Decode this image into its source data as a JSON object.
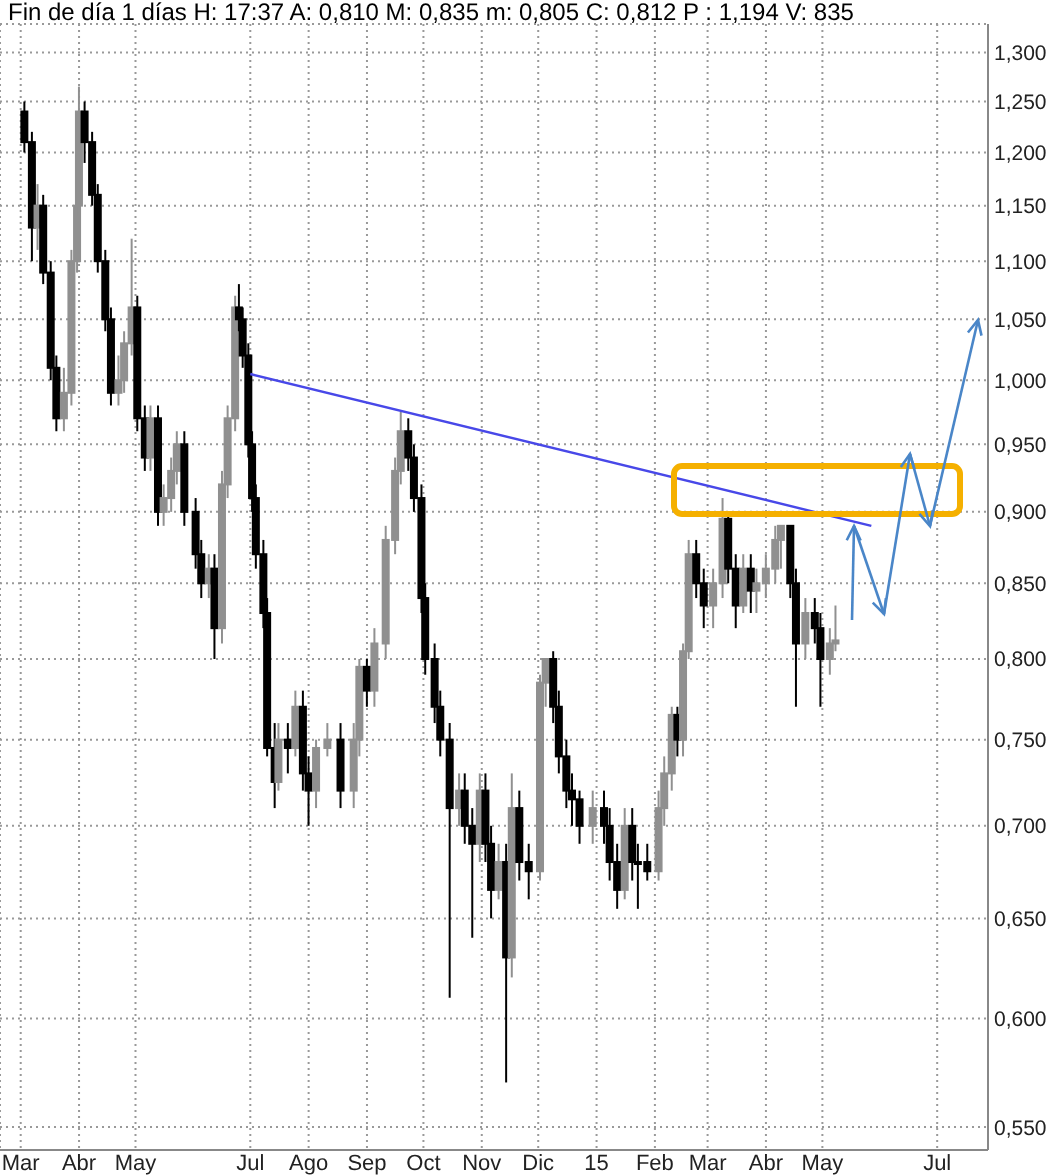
{
  "chart_data": {
    "type": "candlestick",
    "title": "Fin de día 1 días H: 17:37 A: 0,810 M: 0,835 m: 0,805 C: 0,812 P : 1,194 V: 835",
    "grid": true,
    "log": "y",
    "colors": [
      "#000000",
      "#000000",
      "#909090",
      "#000000",
      "#000000",
      "#000000",
      "#909090",
      "#909090",
      "#909090",
      "#909090",
      "#000000",
      "#000000",
      "#000000",
      "#000000",
      "#000000",
      "#909090",
      "#909090",
      "#909090",
      "#000000",
      "#000000",
      "#909090",
      "#000000",
      "#909090",
      "#909090",
      "#909090",
      "#000000",
      "#000000",
      "#000000",
      "#909090",
      "#000000",
      "#909090",
      "#909090",
      "#909090",
      "#000000",
      "#000000",
      "#000000",
      "#000000",
      "#000000",
      "#000000",
      "#000000",
      "#000000",
      "#909090",
      "#000000",
      "#909090",
      "#000000",
      "#000000",
      "#909090",
      "#909090",
      "#000000",
      "#909090",
      "#909090",
      "#000000",
      "#909090",
      "#909090",
      "#909090",
      "#909090",
      "#000000",
      "#000000",
      "#000000",
      "#000000",
      "#000000",
      "#000000",
      "#000000",
      "#909090",
      "#000000",
      "#000000",
      "#909090",
      "#000000",
      "#000000",
      "#909090",
      "#000000",
      "#909090",
      "#000000",
      "#000000",
      "#909090",
      "#909090",
      "#000000",
      "#000000",
      "#000000",
      "#000000",
      "#000000",
      "#909090",
      "#000000",
      "#000000",
      "#000000",
      "#909090",
      "#000000",
      "#000000",
      "#000000",
      "#909090",
      "#909090",
      "#909090",
      "#000000",
      "#909090",
      "#909090",
      "#000000",
      "#000000",
      "#909090",
      "#909090",
      "#000000",
      "#000000",
      "#909090",
      "#000000",
      "#909090",
      "#909090",
      "#909090",
      "#909090",
      "#000000",
      "#000000",
      "#909090",
      "#000000",
      "#000000",
      "#909090",
      "#909090"
    ],
    "xlim": [
      "2014-02-18",
      "2015-07-28"
    ],
    "xticks": [
      {
        "value": "2014-03-01",
        "label": "Mar"
      },
      {
        "value": "2014-04-01",
        "label": "Abr"
      },
      {
        "value": "2014-05-01",
        "label": "May"
      },
      {
        "value": "2014-07-01",
        "label": "Jul"
      },
      {
        "value": "2014-08-01",
        "label": "Ago"
      },
      {
        "value": "2014-09-01",
        "label": "Sep"
      },
      {
        "value": "2014-10-01",
        "label": "Oct"
      },
      {
        "value": "2014-11-01",
        "label": "Nov"
      },
      {
        "value": "2014-12-01",
        "label": "Dic"
      },
      {
        "value": "2015-01-01",
        "label": "15"
      },
      {
        "value": "2015-02-01",
        "label": "Feb"
      },
      {
        "value": "2015-03-01",
        "label": "Mar"
      },
      {
        "value": "2015-04-01",
        "label": "Abr"
      },
      {
        "value": "2015-05-01",
        "label": "May"
      },
      {
        "value": "2015-07-01",
        "label": "Jul"
      }
    ],
    "ylim": [
      0.54,
      1.33
    ],
    "yticks": [
      {
        "value": 0.55,
        "label": "0,550"
      },
      {
        "value": 0.6,
        "label": "0,600"
      },
      {
        "value": 0.65,
        "label": "0,650"
      },
      {
        "value": 0.7,
        "label": "0,700"
      },
      {
        "value": 0.75,
        "label": "0,750"
      },
      {
        "value": 0.8,
        "label": "0,800"
      },
      {
        "value": 0.85,
        "label": "0,850"
      },
      {
        "value": 0.9,
        "label": "0,900"
      },
      {
        "value": 0.95,
        "label": "0,950"
      },
      {
        "value": 1.0,
        "label": "1,000"
      },
      {
        "value": 1.05,
        "label": "1,050"
      },
      {
        "value": 1.1,
        "label": "1,100"
      },
      {
        "value": 1.15,
        "label": "1,150"
      },
      {
        "value": 1.2,
        "label": "1,200"
      },
      {
        "value": 1.25,
        "label": "1,250"
      },
      {
        "value": 1.3,
        "label": "1,300"
      }
    ],
    "x": [
      "2014-03-03",
      "2014-03-07",
      "2014-03-10",
      "2014-03-13",
      "2014-03-17",
      "2014-03-20",
      "2014-03-24",
      "2014-03-28",
      "2014-03-31",
      "2014-04-01",
      "2014-04-04",
      "2014-04-08",
      "2014-04-11",
      "2014-04-15",
      "2014-04-18",
      "2014-04-22",
      "2014-04-25",
      "2014-04-29",
      "2014-05-02",
      "2014-05-06",
      "2014-05-09",
      "2014-05-13",
      "2014-05-16",
      "2014-05-20",
      "2014-05-23",
      "2014-05-27",
      "2014-06-02",
      "2014-06-05",
      "2014-06-09",
      "2014-06-12",
      "2014-06-16",
      "2014-06-19",
      "2014-06-23",
      "2014-06-25",
      "2014-06-27",
      "2014-06-30",
      "2014-07-02",
      "2014-07-04",
      "2014-07-08",
      "2014-07-10",
      "2014-07-14",
      "2014-07-16",
      "2014-07-21",
      "2014-07-25",
      "2014-07-29",
      "2014-08-01",
      "2014-08-05",
      "2014-08-11",
      "2014-08-18",
      "2014-08-25",
      "2014-08-28",
      "2014-09-01",
      "2014-09-05",
      "2014-09-11",
      "2014-09-16",
      "2014-09-19",
      "2014-09-23",
      "2014-09-26",
      "2014-09-30",
      "2014-10-02",
      "2014-10-07",
      "2014-10-10",
      "2014-10-15",
      "2014-10-20",
      "2014-10-23",
      "2014-10-27",
      "2014-10-31",
      "2014-11-03",
      "2014-11-06",
      "2014-11-10",
      "2014-11-14",
      "2014-11-17",
      "2014-11-21",
      "2014-11-26",
      "2014-12-02",
      "2014-12-05",
      "2014-12-09",
      "2014-12-12",
      "2014-12-16",
      "2014-12-19",
      "2014-12-23",
      "2014-12-30",
      "2015-01-05",
      "2015-01-08",
      "2015-01-12",
      "2015-01-16",
      "2015-01-20",
      "2015-01-23",
      "2015-01-28",
      "2015-02-03",
      "2015-02-06",
      "2015-02-10",
      "2015-02-13",
      "2015-02-16",
      "2015-02-19",
      "2015-02-23",
      "2015-02-27",
      "2015-03-04",
      "2015-03-09",
      "2015-03-12",
      "2015-03-16",
      "2015-03-20",
      "2015-03-24",
      "2015-03-27",
      "2015-04-01",
      "2015-04-06",
      "2015-04-09",
      "2015-04-14",
      "2015-04-17",
      "2015-04-22",
      "2015-04-27",
      "2015-04-30",
      "2015-05-05",
      "2015-05-08"
    ],
    "ohlc": [
      [
        1.24,
        1.25,
        1.2,
        1.21
      ],
      [
        1.21,
        1.22,
        1.1,
        1.13
      ],
      [
        1.13,
        1.17,
        1.11,
        1.15
      ],
      [
        1.15,
        1.16,
        1.08,
        1.09
      ],
      [
        1.09,
        1.1,
        1.0,
        1.01
      ],
      [
        1.01,
        1.02,
        0.96,
        0.97
      ],
      [
        0.97,
        1.01,
        0.96,
        0.99
      ],
      [
        0.99,
        1.11,
        0.98,
        1.1
      ],
      [
        1.1,
        1.16,
        1.09,
        1.15
      ],
      [
        1.15,
        1.265,
        1.14,
        1.24
      ],
      [
        1.24,
        1.25,
        1.19,
        1.21
      ],
      [
        1.21,
        1.22,
        1.15,
        1.16
      ],
      [
        1.16,
        1.17,
        1.09,
        1.1
      ],
      [
        1.1,
        1.11,
        1.04,
        1.05
      ],
      [
        1.05,
        1.06,
        0.98,
        0.99
      ],
      [
        0.99,
        1.02,
        0.98,
        1.0
      ],
      [
        1.0,
        1.04,
        0.99,
        1.03
      ],
      [
        1.03,
        1.12,
        1.02,
        1.06
      ],
      [
        1.06,
        1.07,
        0.96,
        0.97
      ],
      [
        0.97,
        0.98,
        0.93,
        0.94
      ],
      [
        0.94,
        0.98,
        0.93,
        0.97
      ],
      [
        0.97,
        0.98,
        0.89,
        0.9
      ],
      [
        0.9,
        0.92,
        0.89,
        0.91
      ],
      [
        0.91,
        0.94,
        0.9,
        0.93
      ],
      [
        0.93,
        0.96,
        0.92,
        0.95
      ],
      [
        0.95,
        0.96,
        0.89,
        0.9
      ],
      [
        0.9,
        0.91,
        0.86,
        0.87
      ],
      [
        0.87,
        0.88,
        0.84,
        0.85
      ],
      [
        0.85,
        0.87,
        0.84,
        0.86
      ],
      [
        0.86,
        0.87,
        0.8,
        0.82
      ],
      [
        0.82,
        0.93,
        0.81,
        0.92
      ],
      [
        0.92,
        0.98,
        0.91,
        0.97
      ],
      [
        0.97,
        1.07,
        0.96,
        1.06
      ],
      [
        1.06,
        1.08,
        1.04,
        1.05
      ],
      [
        1.05,
        1.06,
        1.01,
        1.02
      ],
      [
        1.02,
        1.03,
        0.94,
        0.95
      ],
      [
        0.95,
        0.96,
        0.9,
        0.91
      ],
      [
        0.91,
        0.92,
        0.86,
        0.87
      ],
      [
        0.87,
        0.88,
        0.82,
        0.83
      ],
      [
        0.83,
        0.84,
        0.74,
        0.745
      ],
      [
        0.745,
        0.76,
        0.71,
        0.725
      ],
      [
        0.725,
        0.76,
        0.72,
        0.75
      ],
      [
        0.75,
        0.76,
        0.73,
        0.745
      ],
      [
        0.745,
        0.78,
        0.74,
        0.77
      ],
      [
        0.77,
        0.78,
        0.72,
        0.73
      ],
      [
        0.73,
        0.74,
        0.7,
        0.72
      ],
      [
        0.72,
        0.75,
        0.71,
        0.745
      ],
      [
        0.745,
        0.76,
        0.74,
        0.75
      ],
      [
        0.75,
        0.76,
        0.71,
        0.72
      ],
      [
        0.72,
        0.76,
        0.71,
        0.75
      ],
      [
        0.75,
        0.8,
        0.74,
        0.795
      ],
      [
        0.795,
        0.8,
        0.77,
        0.78
      ],
      [
        0.78,
        0.82,
        0.77,
        0.81
      ],
      [
        0.81,
        0.89,
        0.8,
        0.88
      ],
      [
        0.88,
        0.94,
        0.87,
        0.93
      ],
      [
        0.93,
        0.975,
        0.92,
        0.96
      ],
      [
        0.96,
        0.97,
        0.93,
        0.94
      ],
      [
        0.94,
        0.95,
        0.9,
        0.91
      ],
      [
        0.91,
        0.92,
        0.83,
        0.84
      ],
      [
        0.84,
        0.85,
        0.79,
        0.8
      ],
      [
        0.8,
        0.81,
        0.76,
        0.77
      ],
      [
        0.77,
        0.78,
        0.74,
        0.75
      ],
      [
        0.75,
        0.76,
        0.61,
        0.71
      ],
      [
        0.71,
        0.73,
        0.7,
        0.72
      ],
      [
        0.72,
        0.73,
        0.69,
        0.7
      ],
      [
        0.7,
        0.71,
        0.64,
        0.69
      ],
      [
        0.69,
        0.73,
        0.68,
        0.72
      ],
      [
        0.72,
        0.73,
        0.68,
        0.69
      ],
      [
        0.69,
        0.7,
        0.65,
        0.665
      ],
      [
        0.665,
        0.69,
        0.66,
        0.68
      ],
      [
        0.68,
        0.69,
        0.57,
        0.63
      ],
      [
        0.63,
        0.73,
        0.62,
        0.71
      ],
      [
        0.71,
        0.72,
        0.67,
        0.68
      ],
      [
        0.68,
        0.69,
        0.66,
        0.675
      ],
      [
        0.675,
        0.79,
        0.67,
        0.785
      ],
      [
        0.785,
        0.8,
        0.77,
        0.8
      ],
      [
        0.8,
        0.805,
        0.76,
        0.77
      ],
      [
        0.77,
        0.78,
        0.73,
        0.74
      ],
      [
        0.74,
        0.75,
        0.71,
        0.72
      ],
      [
        0.72,
        0.73,
        0.7,
        0.715
      ],
      [
        0.715,
        0.72,
        0.69,
        0.7
      ],
      [
        0.7,
        0.72,
        0.69,
        0.71
      ],
      [
        0.71,
        0.72,
        0.69,
        0.7
      ],
      [
        0.7,
        0.71,
        0.67,
        0.68
      ],
      [
        0.68,
        0.69,
        0.655,
        0.665
      ],
      [
        0.665,
        0.71,
        0.66,
        0.7
      ],
      [
        0.7,
        0.71,
        0.67,
        0.68
      ],
      [
        0.68,
        0.69,
        0.655,
        0.68
      ],
      [
        0.68,
        0.69,
        0.67,
        0.675
      ],
      [
        0.675,
        0.72,
        0.67,
        0.71
      ],
      [
        0.71,
        0.74,
        0.7,
        0.73
      ],
      [
        0.73,
        0.77,
        0.72,
        0.765
      ],
      [
        0.765,
        0.77,
        0.74,
        0.75
      ],
      [
        0.75,
        0.81,
        0.74,
        0.805
      ],
      [
        0.805,
        0.88,
        0.8,
        0.87
      ],
      [
        0.87,
        0.88,
        0.84,
        0.85
      ],
      [
        0.85,
        0.86,
        0.82,
        0.835
      ],
      [
        0.835,
        0.86,
        0.82,
        0.85
      ],
      [
        0.85,
        0.91,
        0.84,
        0.895
      ],
      [
        0.895,
        0.9,
        0.85,
        0.86
      ],
      [
        0.86,
        0.87,
        0.82,
        0.835
      ],
      [
        0.835,
        0.87,
        0.83,
        0.86
      ],
      [
        0.86,
        0.87,
        0.83,
        0.845
      ],
      [
        0.845,
        0.86,
        0.83,
        0.85
      ],
      [
        0.85,
        0.87,
        0.84,
        0.86
      ],
      [
        0.86,
        0.89,
        0.85,
        0.88
      ],
      [
        0.88,
        0.89,
        0.86,
        0.89
      ],
      [
        0.89,
        0.89,
        0.84,
        0.85
      ],
      [
        0.85,
        0.86,
        0.77,
        0.81
      ],
      [
        0.81,
        0.84,
        0.8,
        0.83
      ],
      [
        0.83,
        0.84,
        0.81,
        0.82
      ],
      [
        0.82,
        0.83,
        0.77,
        0.8
      ],
      [
        0.8,
        0.82,
        0.79,
        0.81
      ],
      [
        0.81,
        0.835,
        0.805,
        0.812
      ]
    ],
    "series": [
      {
        "type": "line",
        "x": [
          "2014-07-01",
          "2015-05-27"
        ],
        "values": [
          1.005,
          0.89
        ],
        "color": "#4848e8"
      }
    ]
  }
}
